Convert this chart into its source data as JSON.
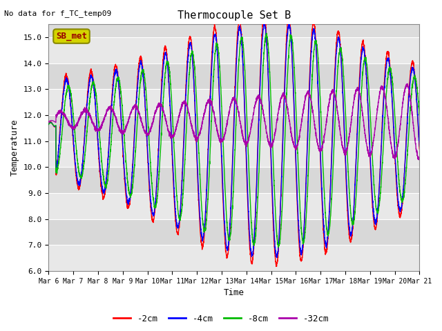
{
  "title": "Thermocouple Set B",
  "annotation": "No data for f_TC_temp09",
  "ylabel": "Temperature",
  "xlabel": "Time",
  "ylim": [
    6.0,
    15.5
  ],
  "yticks": [
    6.0,
    7.0,
    8.0,
    9.0,
    10.0,
    11.0,
    12.0,
    13.0,
    14.0,
    15.0
  ],
  "legend_labels": [
    "-2cm",
    "-4cm",
    "-8cm",
    "-32cm"
  ],
  "legend_colors": [
    "#ff0000",
    "#0000ff",
    "#00cc00",
    "#aa00aa"
  ],
  "bg_color": "#dcdcdc",
  "x_tick_labels": [
    "Mar 6",
    "Mar 7",
    "Mar 8",
    "Mar 9",
    "Mar 10",
    "Mar 11",
    "Mar 12",
    "Mar 13",
    "Mar 14",
    "Mar 15",
    "Mar 16",
    "Mar 17",
    "Mar 18",
    "Mar 19",
    "Mar 20",
    "Mar 21"
  ],
  "sb_met_box_facecolor": "#d4d400",
  "sb_met_box_edgecolor": "#888800",
  "sb_met_text_color": "#990000"
}
